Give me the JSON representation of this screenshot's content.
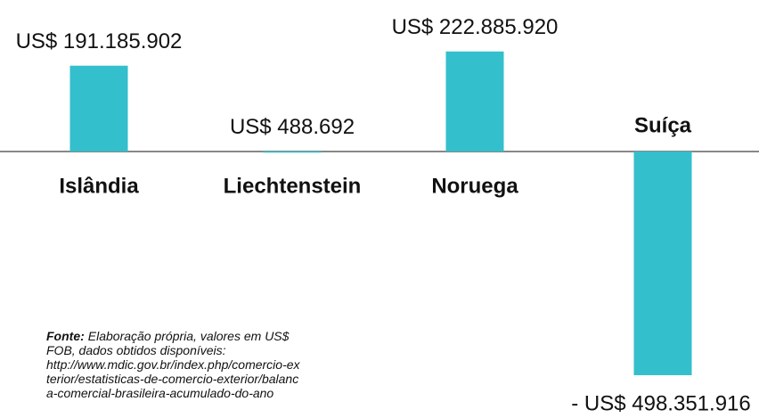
{
  "chart_data": {
    "type": "bar",
    "categories": [
      "Islândia",
      "Liechtenstein",
      "Noruega",
      "Suíça"
    ],
    "values": [
      191185902,
      488692,
      222885920,
      -498351916
    ],
    "value_labels": [
      "US$ 191.185.902",
      "US$ 488.692",
      "US$ 222.885.920",
      "- US$ 498.351.916"
    ],
    "color": "#33bfcc",
    "source": {
      "label": "Fonte:",
      "lines": [
        "Elaboração própria, valores em US$",
        "FOB, dados obtidos disponíveis:",
        "http://www.mdic.gov.br/index.php/comercio-ex",
        "terior/estatisticas-de-comercio-exterior/balanc",
        "a-comercial-brasileira-acumulado-do-ano"
      ]
    }
  }
}
